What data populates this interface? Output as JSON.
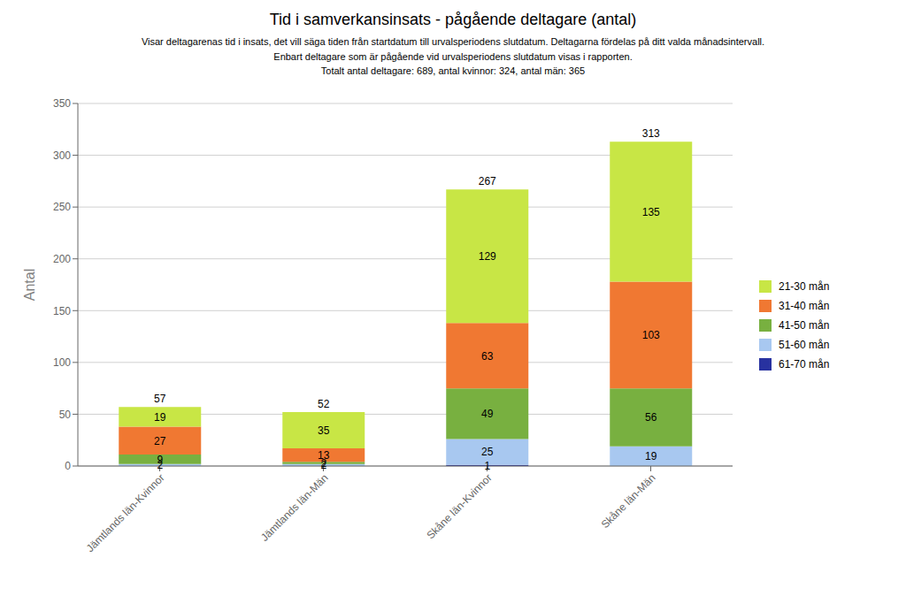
{
  "chart_data": {
    "type": "bar",
    "title": "Tid i samverkansinsats - pågående deltagare (antal)",
    "subtitle": [
      "Visar deltagarenas tid i insats, det vill säga tiden från startdatum till urvalsperiodens slutdatum. Deltagarna fördelas på ditt valda månadsintervall.",
      "Enbart deltagare som är pågående vid urvalsperiodens slutdatum visas i rapporten.",
      "Totalt antal deltagare: 689, antal kvinnor: 324, antal män: 365"
    ],
    "categories": [
      "Jämtlands län-Kvinnor",
      "Jämtlands län-Män",
      "Skåne län-Kvinnor",
      "Skåne län-Män"
    ],
    "series": [
      {
        "name": "61-70 mån",
        "color": "#2832a0",
        "values": [
          0,
          0,
          1,
          0
        ]
      },
      {
        "name": "51-60 mån",
        "color": "#a8c8f0",
        "values": [
          2,
          2,
          25,
          19
        ]
      },
      {
        "name": "41-50 mån",
        "color": "#78b040",
        "values": [
          9,
          2,
          49,
          56
        ]
      },
      {
        "name": "31-40 mån",
        "color": "#f07832",
        "values": [
          27,
          13,
          63,
          103
        ]
      },
      {
        "name": "21-30 mån",
        "color": "#c8e645",
        "values": [
          19,
          35,
          129,
          135
        ]
      }
    ],
    "totals": [
      57,
      52,
      267,
      313
    ],
    "ylabel": "Antal",
    "ylim": [
      0,
      350
    ],
    "yticks": [
      0,
      50,
      100,
      150,
      200,
      250,
      300,
      350
    ],
    "stacked": true,
    "data_labels": true,
    "grid": true,
    "legend": "right"
  }
}
